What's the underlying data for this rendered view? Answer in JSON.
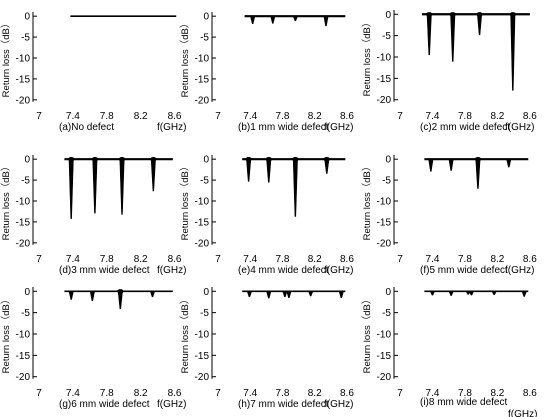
{
  "chart_data": [
    {
      "id": "a",
      "type": "line",
      "caption": "(a)No defect",
      "xunit": "f(GHz)",
      "ylabel": "Return loss（dB）",
      "xlim": [
        7.0,
        8.7
      ],
      "ylim": [
        -21,
        1
      ],
      "xticks": [
        "7",
        "7.4",
        "7.8",
        "8.2",
        "8.6"
      ],
      "yticks": [
        "0",
        "-5",
        "-10",
        "-15",
        "-20"
      ],
      "x_start": 7.37,
      "x_end": 8.62,
      "baseline": 0,
      "dips": []
    },
    {
      "id": "b",
      "type": "line",
      "caption": "(b)1 mm wide defect",
      "xunit": "f(GHz)",
      "ylabel": "Return loss（dB）",
      "xlim": [
        7.0,
        8.7
      ],
      "ylim": [
        -21,
        1
      ],
      "xticks": [
        "7",
        "7.4",
        "7.8",
        "8.2",
        "8.6"
      ],
      "yticks": [
        "0",
        "-5",
        "-10",
        "-15",
        "-20"
      ],
      "x_start": 7.33,
      "x_end": 8.58,
      "baseline": 0,
      "dips": [
        {
          "x": 7.43,
          "y": -1.8
        },
        {
          "x": 7.68,
          "y": -1.7
        },
        {
          "x": 7.96,
          "y": -1.1
        },
        {
          "x": 8.34,
          "y": -2.3
        }
      ]
    },
    {
      "id": "c",
      "type": "line",
      "caption": "(c)2 mm wide defect",
      "xunit": "f(GHz)",
      "ylabel": "Return loss（dB）",
      "xlim": [
        7.0,
        8.7
      ],
      "ylim": [
        -21,
        1
      ],
      "xticks": [
        "7",
        "7.4",
        "7.8",
        "8.2",
        "8.6"
      ],
      "yticks": [
        "0",
        "-5",
        "-10",
        "-15",
        "-20"
      ],
      "x_start": 7.27,
      "x_end": 8.6,
      "baseline": 0,
      "dips": [
        {
          "x": 7.36,
          "y": -9.5
        },
        {
          "x": 7.65,
          "y": -11.0
        },
        {
          "x": 7.98,
          "y": -4.8
        },
        {
          "x": 8.39,
          "y": -17.8
        }
      ]
    },
    {
      "id": "d",
      "type": "line",
      "caption": "(d)3 mm wide defect",
      "xunit": "f(GHz)",
      "ylabel": "Return loss（dB）",
      "xlim": [
        7.0,
        8.7
      ],
      "ylim": [
        -21,
        1
      ],
      "xticks": [
        "7",
        "7.4",
        "7.8",
        "8.2",
        "8.6"
      ],
      "yticks": [
        "0",
        "-5",
        "-10",
        "-15",
        "-20"
      ],
      "x_start": 7.3,
      "x_end": 8.58,
      "baseline": 0,
      "dips": [
        {
          "x": 7.38,
          "y": -14.2
        },
        {
          "x": 7.66,
          "y": -12.9
        },
        {
          "x": 7.98,
          "y": -13.2
        },
        {
          "x": 8.35,
          "y": -7.6
        }
      ]
    },
    {
      "id": "e",
      "type": "line",
      "caption": "(e)4 mm wide defect",
      "xunit": "f(GHz)",
      "ylabel": "Return loss（dB）",
      "xlim": [
        7.0,
        8.7
      ],
      "ylim": [
        -21,
        1
      ],
      "xticks": [
        "7",
        "7.4",
        "7.8",
        "8.2",
        "8.6"
      ],
      "yticks": [
        "0",
        "-5",
        "-10",
        "-15",
        "-20"
      ],
      "x_start": 7.3,
      "x_end": 8.58,
      "baseline": 0,
      "dips": [
        {
          "x": 7.38,
          "y": -5.3
        },
        {
          "x": 7.63,
          "y": -5.5
        },
        {
          "x": 7.96,
          "y": -13.7
        },
        {
          "x": 8.35,
          "y": -3.4
        }
      ]
    },
    {
      "id": "f",
      "type": "line",
      "caption": "(f)5 mm wide defect",
      "xunit": "f(GHz)",
      "ylabel": "Return loss（dB）",
      "xlim": [
        7.0,
        8.7
      ],
      "ylim": [
        -21,
        1
      ],
      "xticks": [
        "7",
        "7.4",
        "7.8",
        "8.2",
        "8.6"
      ],
      "yticks": [
        "0",
        "-5",
        "-10",
        "-15",
        "-20"
      ],
      "x_start": 7.3,
      "x_end": 8.58,
      "baseline": 0,
      "dips": [
        {
          "x": 7.38,
          "y": -2.9
        },
        {
          "x": 7.63,
          "y": -2.7
        },
        {
          "x": 7.96,
          "y": -7.0
        },
        {
          "x": 8.34,
          "y": -1.9
        }
      ]
    },
    {
      "id": "g",
      "type": "line",
      "caption": "(g)6 mm wide defect",
      "xunit": "f(GHz)",
      "ylabel": "Return loss（dB）",
      "xlim": [
        7.0,
        8.7
      ],
      "ylim": [
        -21,
        1
      ],
      "xticks": [
        "7",
        "7.4",
        "7.8",
        "8.2",
        "8.6"
      ],
      "yticks": [
        "0",
        "-5",
        "-10",
        "-15",
        "-20"
      ],
      "x_start": 7.3,
      "x_end": 8.58,
      "baseline": 0,
      "dips": [
        {
          "x": 7.38,
          "y": -1.9
        },
        {
          "x": 7.63,
          "y": -2.2
        },
        {
          "x": 7.96,
          "y": -4.1
        },
        {
          "x": 8.34,
          "y": -1.3
        }
      ]
    },
    {
      "id": "h",
      "type": "line",
      "caption": "(h)7 mm wide defect",
      "xunit": "f(GHz)",
      "ylabel": "Return loss（dB）",
      "xlim": [
        7.0,
        8.7
      ],
      "ylim": [
        -21,
        1
      ],
      "xticks": [
        "7",
        "7.4",
        "7.8",
        "8.2",
        "8.6"
      ],
      "yticks": [
        "0",
        "-5",
        "-10",
        "-15",
        "-20"
      ],
      "x_start": 7.3,
      "x_end": 8.58,
      "baseline": 0,
      "dips": [
        {
          "x": 7.39,
          "y": -1.3
        },
        {
          "x": 7.63,
          "y": -1.6
        },
        {
          "x": 7.83,
          "y": -1.3
        },
        {
          "x": 7.88,
          "y": -1.5
        },
        {
          "x": 8.15,
          "y": -1.1
        },
        {
          "x": 8.53,
          "y": -1.5
        }
      ]
    },
    {
      "id": "i",
      "type": "line",
      "caption": "(i)8 mm wide defect",
      "xunit": "f(GHz)",
      "ylabel": "Return loss（dB）",
      "xlim": [
        7.0,
        8.7
      ],
      "ylim": [
        -21,
        1
      ],
      "xticks": [
        "7",
        "7.4",
        "7.8",
        "8.2",
        "8.6"
      ],
      "yticks": [
        "0",
        "-5",
        "-10",
        "-15",
        "-20"
      ],
      "x_start": 7.3,
      "x_end": 8.58,
      "baseline": 0,
      "dips": [
        {
          "x": 7.4,
          "y": -0.9
        },
        {
          "x": 7.63,
          "y": -1.0
        },
        {
          "x": 7.84,
          "y": -0.7
        },
        {
          "x": 7.88,
          "y": -0.9
        },
        {
          "x": 8.16,
          "y": -0.8
        },
        {
          "x": 8.53,
          "y": -1.2
        }
      ]
    }
  ]
}
